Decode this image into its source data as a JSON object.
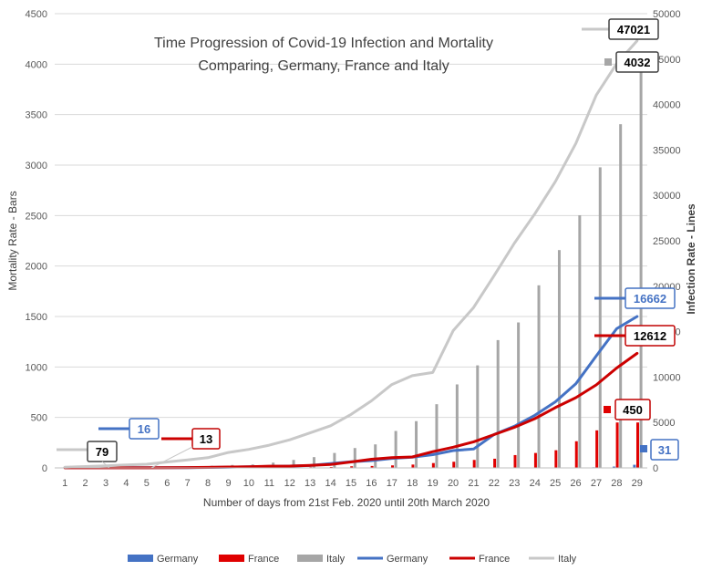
{
  "chart_data": {
    "type": "bar+line",
    "title": [
      "Time Progression of Covid-19 Infection and Mortality",
      "Comparing, Germany, France and Italy"
    ],
    "xlabel": "Number of days from 21st Feb. 2020 until 20th March 2020",
    "ylabel_left": "Mortality Rate - Bars",
    "ylabel_right": "Infection Rate - Lines",
    "ylim_left": [
      0,
      4500
    ],
    "ylim_right": [
      0,
      50000
    ],
    "left_ticks": [
      "0",
      "500",
      "1000",
      "1500",
      "2000",
      "2500",
      "3000",
      "3500",
      "4000",
      "4500"
    ],
    "right_ticks": [
      "0",
      "5000",
      "10000",
      "15000",
      "20000",
      "25000",
      "30000",
      "35000",
      "40000",
      "45000",
      "50000"
    ],
    "categories": [
      "1",
      "2",
      "3",
      "4",
      "5",
      "6",
      "7",
      "8",
      "9",
      "10",
      "11",
      "12",
      "13",
      "14",
      "15",
      "16",
      "17",
      "18",
      "19",
      "20",
      "21",
      "22",
      "23",
      "24",
      "25",
      "26",
      "27",
      "28",
      "29"
    ],
    "bar_series": [
      {
        "name": "Germany",
        "color": "#4472c4",
        "values": [
          0,
          0,
          0,
          0,
          0,
          0,
          0,
          0,
          0,
          0,
          0,
          0,
          0,
          0,
          0,
          0,
          0,
          0,
          0,
          0,
          0,
          0,
          0,
          0,
          2,
          3,
          6,
          13,
          31
        ]
      },
      {
        "name": "France",
        "color": "#e00000",
        "values": [
          1,
          1,
          1,
          1,
          1,
          2,
          2,
          2,
          2,
          3,
          4,
          4,
          7,
          9,
          16,
          19,
          25,
          33,
          48,
          61,
          79,
          91,
          127,
          148,
          175,
          264,
          372,
          450,
          450
        ]
      },
      {
        "name": "Italy",
        "color": "#a6a6a6",
        "values": [
          1,
          2,
          3,
          7,
          10,
          12,
          17,
          21,
          29,
          34,
          52,
          79,
          107,
          148,
          197,
          233,
          366,
          463,
          631,
          827,
          1016,
          1266,
          1441,
          1809,
          2158,
          2503,
          2978,
          3405,
          4032
        ]
      }
    ],
    "line_series": [
      {
        "name": "Germany",
        "color": "#4472c4",
        "values": [
          16,
          16,
          16,
          16,
          16,
          18,
          26,
          48,
          79,
          130,
          159,
          196,
          262,
          482,
          670,
          799,
          1040,
          1176,
          1457,
          1908,
          2078,
          3675,
          4585,
          5795,
          7272,
          9257,
          12327,
          15320,
          16662
        ]
      },
      {
        "name": "France",
        "color": "#cc0000",
        "values": [
          13,
          13,
          13,
          13,
          13,
          18,
          38,
          57,
          100,
          130,
          191,
          204,
          285,
          377,
          653,
          949,
          1126,
          1209,
          1784,
          2281,
          2876,
          3661,
          4469,
          5423,
          6633,
          7730,
          9134,
          10995,
          12612
        ]
      },
      {
        "name": "Italy",
        "color": "#c8c8c8",
        "values": [
          79,
          150,
          229,
          322,
          400,
          650,
          888,
          1128,
          1694,
          2036,
          2502,
          3089,
          3858,
          4636,
          5883,
          7375,
          9172,
          10149,
          10500,
          15113,
          17660,
          21157,
          24747,
          27980,
          31506,
          35713,
          41035,
          44500,
          47021
        ]
      }
    ],
    "legend": [
      "Germany",
      "France",
      "Italy",
      "Germany",
      "France",
      "Italy"
    ],
    "annotations": [
      {
        "text": "79",
        "series": "Italy",
        "day": 1,
        "color": "#000000"
      },
      {
        "text": "16",
        "series": "Germany",
        "day": 1,
        "color": "#4472c4"
      },
      {
        "text": "13",
        "series": "France",
        "day": 1,
        "color": "#000000"
      },
      {
        "text": "47021",
        "series": "Italy",
        "day": 29,
        "color": "#000000"
      },
      {
        "text": "4032",
        "series": "Italy",
        "day": 29,
        "color": "#000000"
      },
      {
        "text": "16662",
        "series": "Germany",
        "day": 29,
        "color": "#4472c4"
      },
      {
        "text": "12612",
        "series": "France",
        "day": 29,
        "color": "#000000"
      },
      {
        "text": "450",
        "series": "France",
        "day": 29,
        "color": "#000000"
      },
      {
        "text": "31",
        "series": "Germany",
        "day": 29,
        "color": "#4472c4"
      }
    ]
  }
}
